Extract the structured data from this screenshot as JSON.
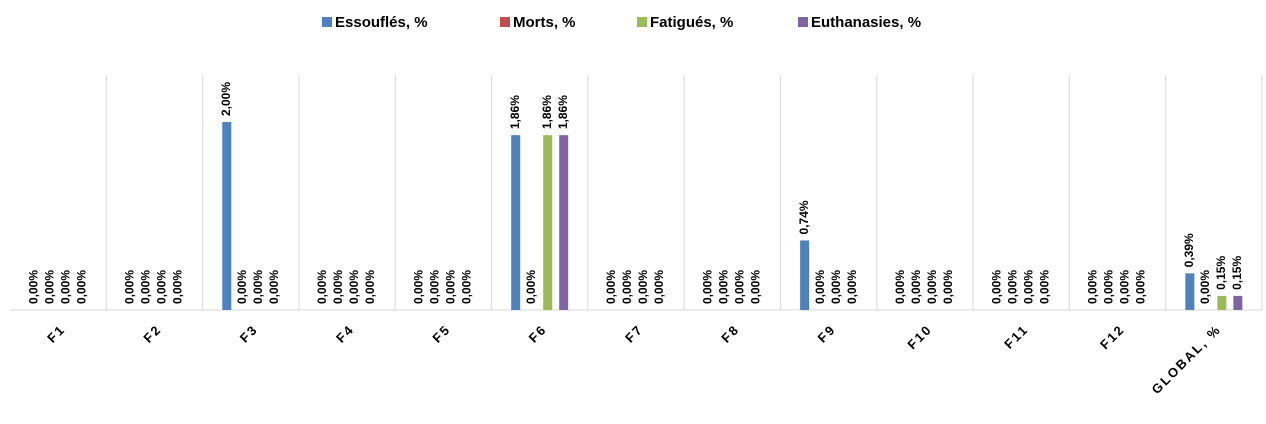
{
  "chart_data": {
    "type": "bar",
    "categories": [
      "F1",
      "F2",
      "F3",
      "F4",
      "F5",
      "F6",
      "F7",
      "F8",
      "F9",
      "F10",
      "F11",
      "F12",
      "GLOBAL, %"
    ],
    "ylim": [
      0,
      2.5
    ],
    "series": [
      {
        "name": "Essouflés, %",
        "color": "#4f81bd",
        "values": [
          0,
          0,
          2.0,
          0,
          0,
          1.86,
          0,
          0,
          0.74,
          0,
          0,
          0,
          0.39
        ],
        "value_labels": [
          "0,00%",
          "0,00%",
          "2,00%",
          "0,00%",
          "0,00%",
          "1,86%",
          "0,00%",
          "0,00%",
          "0,74%",
          "0,00%",
          "0,00%",
          "0,00%",
          "0,39%"
        ]
      },
      {
        "name": "Morts, %",
        "color": "#c0504d",
        "values": [
          0,
          0,
          0,
          0,
          0,
          0,
          0,
          0,
          0,
          0,
          0,
          0,
          0
        ],
        "value_labels": [
          "0,00%",
          "0,00%",
          "0,00%",
          "0,00%",
          "0,00%",
          "0,00%",
          "0,00%",
          "0,00%",
          "0,00%",
          "0,00%",
          "0,00%",
          "0,00%",
          "0,00%"
        ]
      },
      {
        "name": "Fatigués, %",
        "color": "#9bbb59",
        "values": [
          0,
          0,
          0,
          0,
          0,
          1.86,
          0,
          0,
          0,
          0,
          0,
          0,
          0.15
        ],
        "value_labels": [
          "0,00%",
          "0,00%",
          "0,00%",
          "0,00%",
          "0,00%",
          "1,86%",
          "0,00%",
          "0,00%",
          "0,00%",
          "0,00%",
          "0,00%",
          "0,00%",
          "0,15%"
        ]
      },
      {
        "name": "Euthanasies, %",
        "color": "#8064a2",
        "values": [
          0,
          0,
          0,
          0,
          0,
          1.86,
          0,
          0,
          0,
          0,
          0,
          0,
          0.15
        ],
        "value_labels": [
          "0,00%",
          "0,00%",
          "0,00%",
          "0,00%",
          "0,00%",
          "1,86%",
          "0,00%",
          "0,00%",
          "0,00%",
          "0,00%",
          "0,00%",
          "0,00%",
          "0,15%"
        ]
      }
    ]
  }
}
